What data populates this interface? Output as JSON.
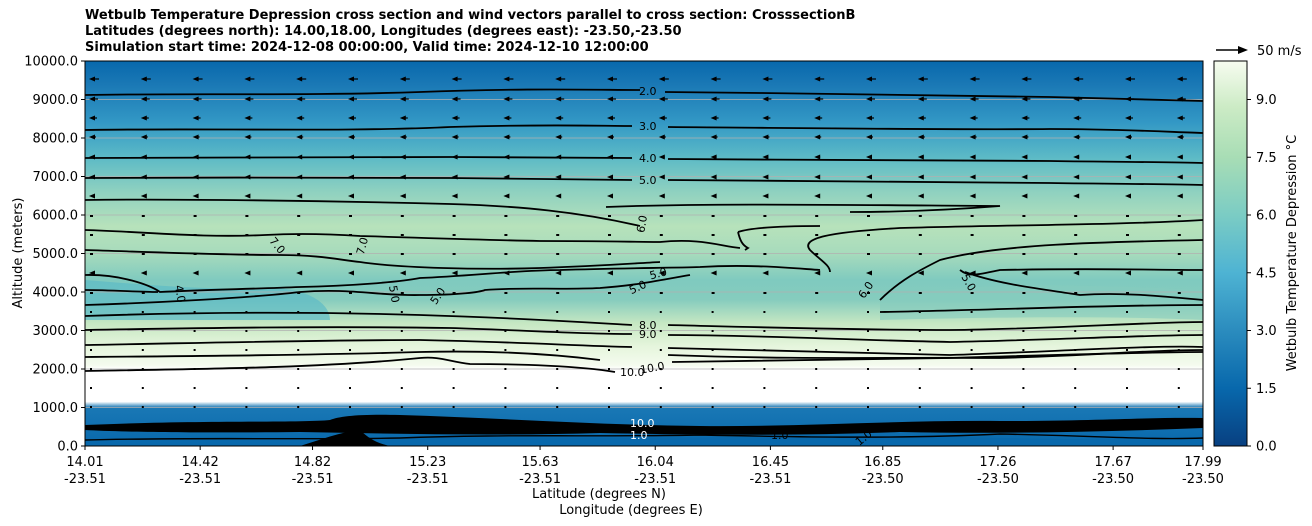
{
  "chart_data": {
    "type": "contour",
    "title_lines": [
      "Wetbulb Temperature Depression cross section and wind vectors parallel to cross section: CrosssectionB",
      "Latitudes (degrees north): 14.00,18.00, Longitudes (degrees east): -23.50,-23.50",
      "Simulation start time: 2024-12-08 00:00:00, Valid time: 2024-12-10 12:00:00"
    ],
    "ylabel": "Altitude (meters)",
    "xlabel_lat": "Latitude (degrees N)",
    "xlabel_lon": "Longitude (degrees E)",
    "ylim": [
      0,
      10000
    ],
    "yticks": [
      "0.0",
      "1000.0",
      "2000.0",
      "3000.0",
      "4000.0",
      "5000.0",
      "6000.0",
      "7000.0",
      "8000.0",
      "9000.0",
      "10000.0"
    ],
    "xlim": [
      14.01,
      17.99
    ],
    "xticks": [
      {
        "lat": "14.01",
        "lon": "-23.51"
      },
      {
        "lat": "14.42",
        "lon": "-23.51"
      },
      {
        "lat": "14.82",
        "lon": "-23.51"
      },
      {
        "lat": "15.23",
        "lon": "-23.51"
      },
      {
        "lat": "15.63",
        "lon": "-23.51"
      },
      {
        "lat": "16.04",
        "lon": "-23.51"
      },
      {
        "lat": "16.45",
        "lon": "-23.51"
      },
      {
        "lat": "16.85",
        "lon": "-23.50"
      },
      {
        "lat": "17.26",
        "lon": "-23.50"
      },
      {
        "lat": "17.67",
        "lon": "-23.50"
      },
      {
        "lat": "17.99",
        "lon": "-23.50"
      }
    ],
    "contour_labels": [
      "2.0",
      "3.0",
      "4.0",
      "5.0",
      "6.0",
      "7.0",
      "7.0",
      "4.0",
      "5.0",
      "5.0",
      "5.0",
      "5.0",
      "6.0",
      "5.0",
      "8.0",
      "9.0",
      "10.0",
      "10.0",
      "1.0",
      "1.0",
      "10.0",
      "1.0"
    ],
    "colorbar": {
      "label": "Wetbulb Temperature Depression °C",
      "ticks": [
        "0.0",
        "1.5",
        "3.0",
        "4.5",
        "6.0",
        "7.5",
        "9.0"
      ],
      "range": [
        0,
        10
      ]
    },
    "wind_key_label": "50 m/s",
    "grid": "horizontal"
  }
}
